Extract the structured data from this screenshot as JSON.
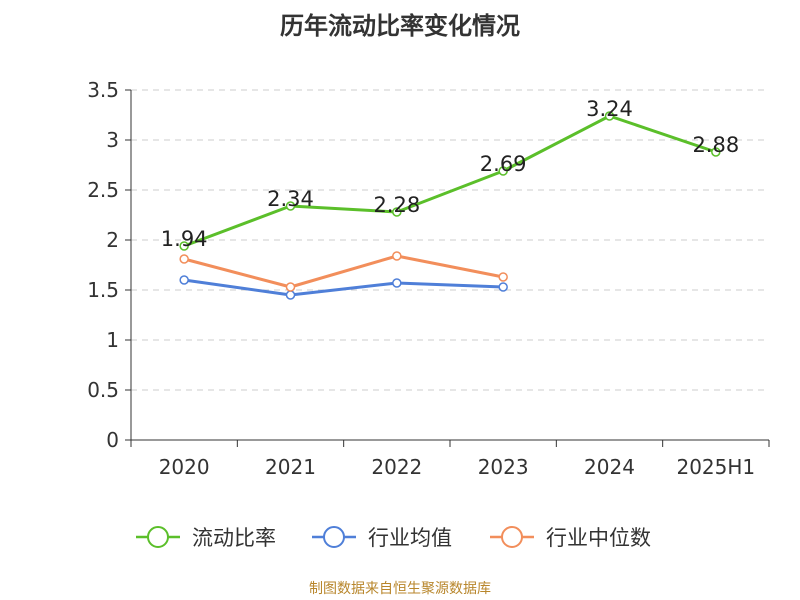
{
  "chart_data": {
    "type": "line",
    "title": "历年流动比率变化情况",
    "categories": [
      "2020",
      "2021",
      "2022",
      "2023",
      "2024",
      "2025H1"
    ],
    "ylim": [
      0,
      3.5
    ],
    "yticks": [
      "0",
      "0.5",
      "1",
      "1.5",
      "2",
      "2.5",
      "3",
      "3.5"
    ],
    "grid": true,
    "legend_position": "bottom",
    "series": [
      {
        "name": "流动比率",
        "color": "#5bbf2a",
        "values": [
          1.94,
          2.34,
          2.28,
          2.69,
          3.24,
          2.88
        ],
        "labels": [
          "1.94",
          "2.34",
          "2.28",
          "2.69",
          "3.24",
          "2.88"
        ]
      },
      {
        "name": "行业均值",
        "color": "#4f7fd8",
        "values": [
          1.6,
          1.45,
          1.57,
          1.53,
          null,
          null
        ]
      },
      {
        "name": "行业中位数",
        "color": "#f28e5b",
        "values": [
          1.81,
          1.53,
          1.84,
          1.63,
          null,
          null
        ]
      }
    ]
  },
  "footer": {
    "source": "制图数据来自恒生聚源数据库"
  }
}
